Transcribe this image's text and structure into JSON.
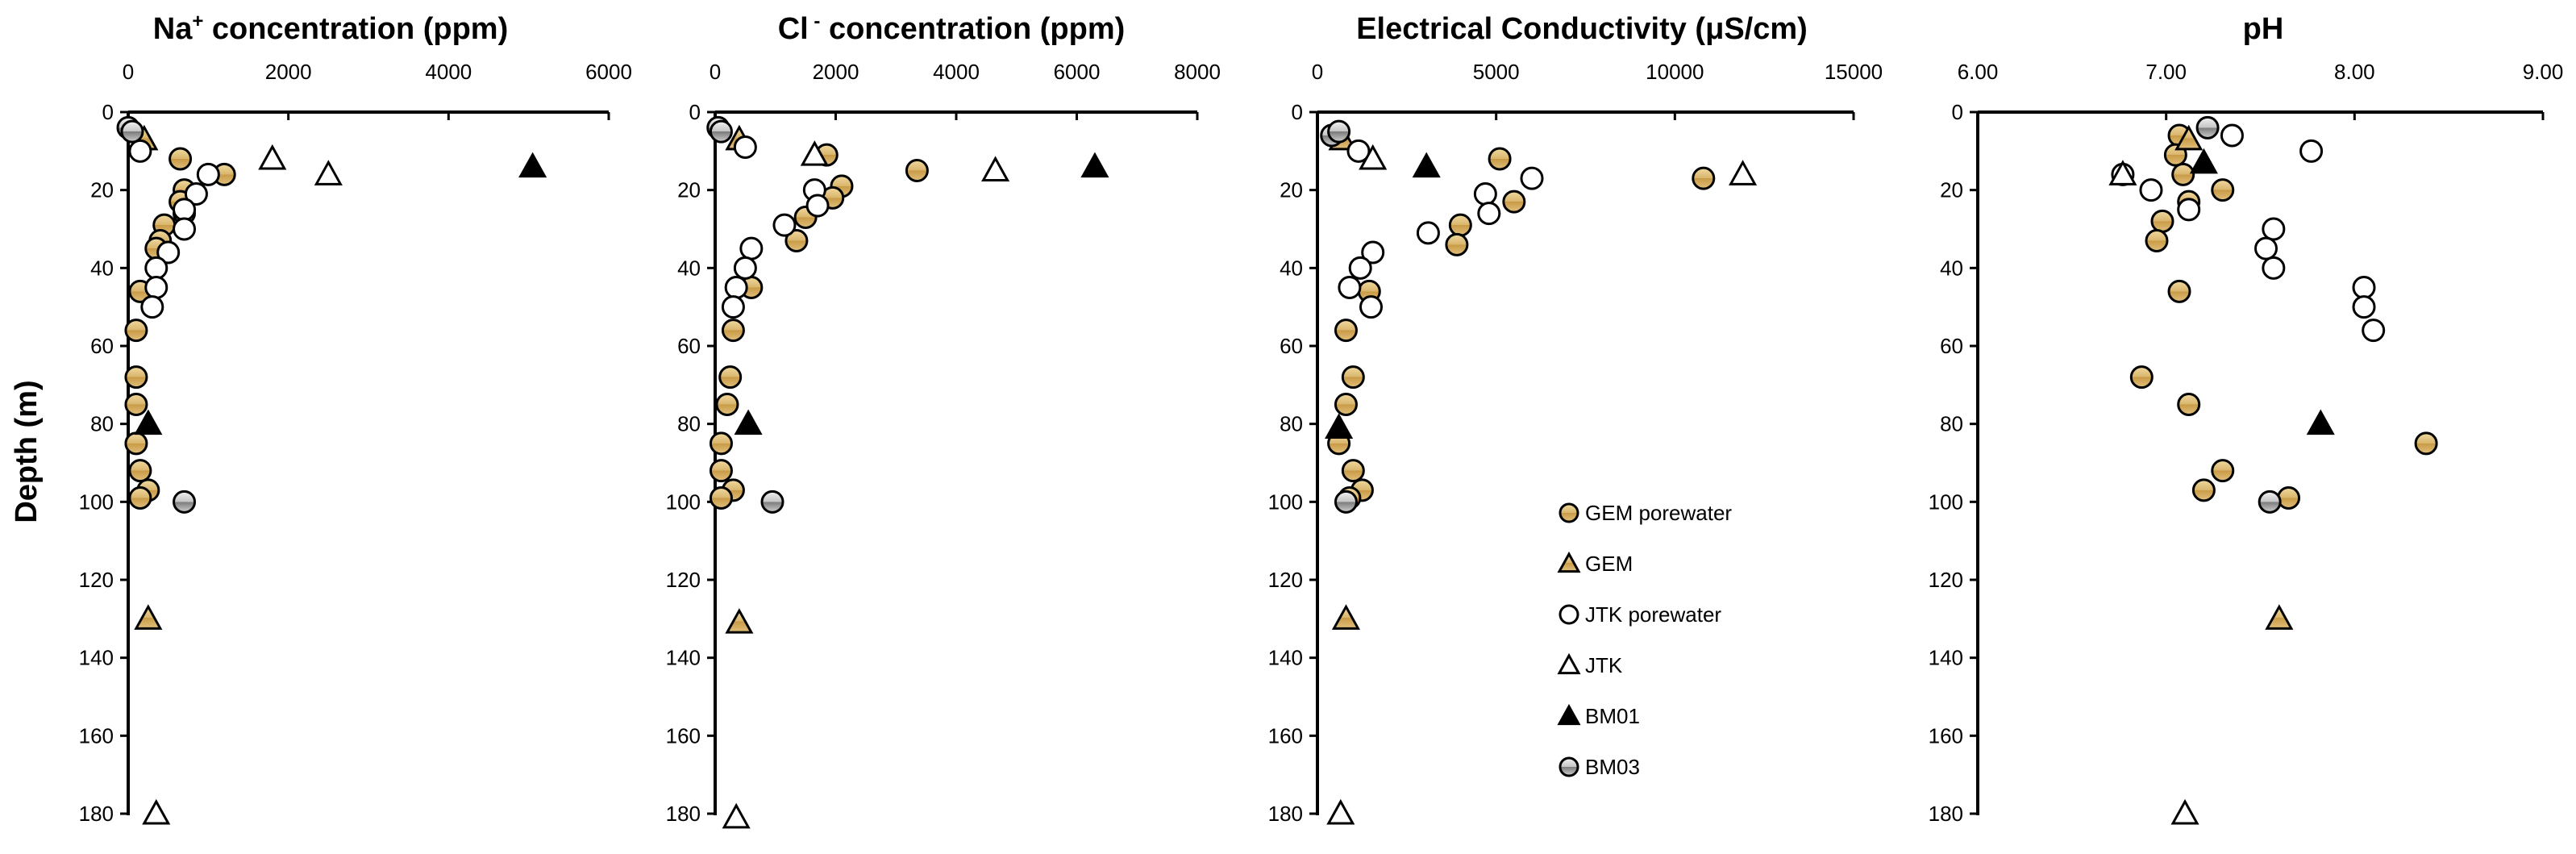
{
  "chart_data": {
    "type": "scatter",
    "y_axis": {
      "label": "Depth (m)",
      "range": [
        0,
        180
      ],
      "ticks": [
        0,
        20,
        40,
        60,
        80,
        100,
        120,
        140,
        160,
        180
      ],
      "inverted": true
    },
    "series_styles": [
      {
        "name": "GEM porewater",
        "marker": "circle",
        "fill": "#d4b06a"
      },
      {
        "name": "GEM",
        "marker": "triangle",
        "fill": "#d4b06a"
      },
      {
        "name": "JTK porewater",
        "marker": "circle",
        "fill": "#ffffff"
      },
      {
        "name": "JTK",
        "marker": "triangle",
        "fill": "#ffffff"
      },
      {
        "name": "BM01",
        "marker": "triangle",
        "fill": "#000000"
      },
      {
        "name": "BM03",
        "marker": "circle",
        "fill": "#a0a0a0"
      }
    ],
    "legend": {
      "position": "bottom-right of third panel",
      "entries": [
        "GEM porewater",
        "GEM",
        "JTK porewater",
        "JTK",
        "BM01",
        "BM03"
      ]
    },
    "panels": [
      {
        "id": "na",
        "title_main": "Na",
        "title_sup": "+",
        "title_rest": " concentration (ppm)",
        "x_range": [
          0,
          6000
        ],
        "x_ticks": [
          "0",
          "2000",
          "4000",
          "6000"
        ],
        "series": [
          {
            "name": "GEM porewater",
            "points": [
              [
                650,
                12
              ],
              [
                1200,
                16
              ],
              [
                700,
                20
              ],
              [
                650,
                23
              ],
              [
                700,
                26
              ],
              [
                450,
                29
              ],
              [
                400,
                33
              ],
              [
                350,
                35
              ],
              [
                150,
                46
              ],
              [
                100,
                56
              ],
              [
                100,
                68
              ],
              [
                100,
                75
              ],
              [
                100,
                85
              ],
              [
                150,
                92
              ],
              [
                250,
                97
              ],
              [
                150,
                99
              ]
            ]
          },
          {
            "name": "GEM",
            "points": [
              [
                200,
                7
              ],
              [
                250,
                130
              ]
            ]
          },
          {
            "name": "JTK porewater",
            "points": [
              [
                150,
                10
              ],
              [
                1000,
                16
              ],
              [
                850,
                21
              ],
              [
                700,
                25
              ],
              [
                700,
                30
              ],
              [
                500,
                36
              ],
              [
                350,
                40
              ],
              [
                350,
                45
              ],
              [
                300,
                50
              ]
            ]
          },
          {
            "name": "JTK",
            "points": [
              [
                1800,
                12
              ],
              [
                2500,
                16
              ],
              [
                350,
                180
              ]
            ]
          },
          {
            "name": "BM01",
            "points": [
              [
                5050,
                14
              ],
              [
                250,
                80
              ]
            ]
          },
          {
            "name": "BM03",
            "points": [
              [
                0,
                4
              ],
              [
                50,
                5
              ],
              [
                700,
                100
              ]
            ]
          }
        ]
      },
      {
        "id": "cl",
        "title_main": "Cl",
        "title_sup": " -",
        "title_rest": " concentration (ppm)",
        "x_range": [
          0,
          8000
        ],
        "x_ticks": [
          "0",
          "2000",
          "4000",
          "6000",
          "8000"
        ],
        "series": [
          {
            "name": "GEM porewater",
            "points": [
              [
                1850,
                11
              ],
              [
                3350,
                15
              ],
              [
                2100,
                19
              ],
              [
                1950,
                22
              ],
              [
                1500,
                27
              ],
              [
                1350,
                33
              ],
              [
                600,
                45
              ],
              [
                300,
                56
              ],
              [
                250,
                68
              ],
              [
                200,
                75
              ],
              [
                100,
                85
              ],
              [
                100,
                92
              ],
              [
                300,
                97
              ],
              [
                100,
                99
              ]
            ]
          },
          {
            "name": "GEM",
            "points": [
              [
                400,
                7
              ],
              [
                400,
                131
              ]
            ]
          },
          {
            "name": "JTK porewater",
            "points": [
              [
                500,
                9
              ],
              [
                1650,
                20
              ],
              [
                1700,
                24
              ],
              [
                1150,
                29
              ],
              [
                600,
                35
              ],
              [
                500,
                40
              ],
              [
                350,
                45
              ],
              [
                300,
                50
              ]
            ]
          },
          {
            "name": "JTK",
            "points": [
              [
                1650,
                11
              ],
              [
                4650,
                15
              ],
              [
                350,
                181
              ]
            ]
          },
          {
            "name": "BM01",
            "points": [
              [
                6300,
                14
              ],
              [
                550,
                80
              ]
            ]
          },
          {
            "name": "BM03",
            "points": [
              [
                50,
                4
              ],
              [
                100,
                5
              ],
              [
                950,
                100
              ]
            ]
          }
        ]
      },
      {
        "id": "ec",
        "title_main": "Electrical Conductivity (μS/cm)",
        "title_sup": "",
        "title_rest": "",
        "x_range": [
          0,
          15000
        ],
        "x_ticks": [
          "0",
          "5000",
          "10000",
          "15000"
        ],
        "series": [
          {
            "name": "GEM porewater",
            "points": [
              [
                5100,
                12
              ],
              [
                10800,
                17
              ],
              [
                5500,
                23
              ],
              [
                4000,
                29
              ],
              [
                3900,
                34
              ],
              [
                1450,
                46
              ],
              [
                800,
                56
              ],
              [
                1000,
                68
              ],
              [
                800,
                75
              ],
              [
                600,
                85
              ],
              [
                1000,
                92
              ],
              [
                1250,
                97
              ],
              [
                900,
                99
              ]
            ]
          },
          {
            "name": "GEM",
            "points": [
              [
                700,
                7
              ],
              [
                800,
                130
              ]
            ]
          },
          {
            "name": "JTK porewater",
            "points": [
              [
                1150,
                10
              ],
              [
                6000,
                17
              ],
              [
                4700,
                21
              ],
              [
                4800,
                26
              ],
              [
                3100,
                31
              ],
              [
                1550,
                36
              ],
              [
                1200,
                40
              ],
              [
                900,
                45
              ],
              [
                1500,
                50
              ]
            ]
          },
          {
            "name": "JTK",
            "points": [
              [
                1550,
                12
              ],
              [
                11900,
                16
              ],
              [
                650,
                180
              ]
            ]
          },
          {
            "name": "BM01",
            "points": [
              [
                3050,
                14
              ],
              [
                600,
                81
              ]
            ]
          },
          {
            "name": "BM03",
            "points": [
              [
                400,
                6
              ],
              [
                600,
                5
              ],
              [
                800,
                100
              ]
            ]
          }
        ]
      },
      {
        "id": "ph",
        "title_main": "pH",
        "title_sup": "",
        "title_rest": "",
        "x_range": [
          6,
          9
        ],
        "x_ticks": [
          "6.00",
          "7.00",
          "8.00",
          "9.00"
        ],
        "series": [
          {
            "name": "GEM porewater",
            "points": [
              [
                7.07,
                6
              ],
              [
                7.05,
                11
              ],
              [
                7.09,
                16
              ],
              [
                7.3,
                20
              ],
              [
                7.12,
                23
              ],
              [
                6.98,
                28
              ],
              [
                6.95,
                33
              ],
              [
                7.07,
                46
              ],
              [
                6.87,
                68
              ],
              [
                7.12,
                75
              ],
              [
                8.38,
                85
              ],
              [
                7.3,
                92
              ],
              [
                7.2,
                97
              ],
              [
                7.65,
                99
              ]
            ]
          },
          {
            "name": "GEM",
            "points": [
              [
                7.12,
                7
              ],
              [
                7.6,
                130
              ]
            ]
          },
          {
            "name": "JTK porewater",
            "points": [
              [
                7.35,
                6
              ],
              [
                7.77,
                10
              ],
              [
                6.77,
                16
              ],
              [
                6.92,
                20
              ],
              [
                7.12,
                25
              ],
              [
                7.57,
                30
              ],
              [
                7.53,
                35
              ],
              [
                7.57,
                40
              ],
              [
                8.05,
                45
              ],
              [
                8.05,
                50
              ],
              [
                8.1,
                56
              ]
            ]
          },
          {
            "name": "JTK",
            "points": [
              [
                6.77,
                16
              ],
              [
                7.1,
                180
              ]
            ]
          },
          {
            "name": "BM01",
            "points": [
              [
                7.2,
                13
              ],
              [
                7.82,
                80
              ]
            ]
          },
          {
            "name": "BM03",
            "points": [
              [
                7.22,
                4
              ],
              [
                7.55,
                100
              ]
            ]
          }
        ]
      }
    ]
  }
}
